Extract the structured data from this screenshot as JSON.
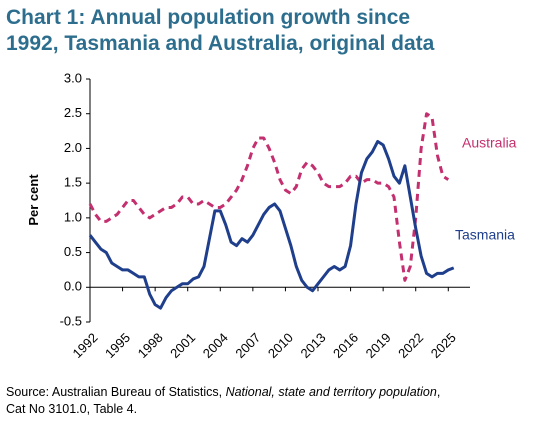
{
  "chart_data": {
    "type": "line",
    "title_lines": [
      "Chart 1: Annual population growth since",
      "1992, Tasmania and Australia, original data"
    ],
    "ylabel": "Per cent",
    "source": {
      "prefix": "Source: Australian Bureau of Statistics, ",
      "italic": "National, state and territory population",
      "suffix": ",",
      "line2": "Cat No 3101.0, Table 4."
    },
    "x": [
      1992,
      1992.5,
      1993,
      1993.5,
      1994,
      1994.5,
      1995,
      1995.5,
      1996,
      1996.5,
      1997,
      1997.5,
      1998,
      1998.5,
      1999,
      1999.5,
      2000,
      2000.5,
      2001,
      2001.5,
      2002,
      2002.5,
      2003,
      2003.5,
      2004,
      2004.5,
      2005,
      2005.5,
      2006,
      2006.5,
      2007,
      2007.5,
      2008,
      2008.5,
      2009,
      2009.5,
      2010,
      2010.5,
      2011,
      2011.5,
      2012,
      2012.5,
      2013,
      2013.5,
      2014,
      2014.5,
      2015,
      2015.5,
      2016,
      2016.5,
      2017,
      2017.5,
      2018,
      2018.5,
      2019,
      2019.5,
      2020,
      2020.5,
      2021,
      2021.5,
      2022,
      2022.5,
      2023,
      2023.5,
      2024,
      2024.5,
      2025,
      2025.5
    ],
    "series": [
      {
        "name": "Australia",
        "color": "#c4306f",
        "dashed": true,
        "values": [
          1.2,
          1.05,
          0.95,
          0.95,
          1.0,
          1.05,
          1.15,
          1.25,
          1.25,
          1.15,
          1.05,
          1.0,
          1.05,
          1.1,
          1.15,
          1.15,
          1.2,
          1.3,
          1.3,
          1.2,
          1.2,
          1.25,
          1.2,
          1.15,
          1.15,
          1.2,
          1.3,
          1.4,
          1.55,
          1.75,
          2.0,
          2.15,
          2.15,
          2.0,
          1.8,
          1.55,
          1.4,
          1.35,
          1.45,
          1.7,
          1.8,
          1.75,
          1.65,
          1.5,
          1.45,
          1.45,
          1.45,
          1.5,
          1.6,
          1.6,
          1.5,
          1.55,
          1.55,
          1.5,
          1.5,
          1.45,
          1.3,
          0.65,
          0.1,
          0.3,
          1.0,
          2.0,
          2.5,
          2.45,
          1.9,
          1.6,
          1.55,
          null
        ]
      },
      {
        "name": "Tasmania",
        "color": "#1f3f8c",
        "dashed": false,
        "values": [
          0.75,
          0.65,
          0.55,
          0.5,
          0.35,
          0.3,
          0.25,
          0.25,
          0.2,
          0.15,
          0.15,
          -0.1,
          -0.25,
          -0.3,
          -0.15,
          -0.05,
          0.0,
          0.05,
          0.05,
          0.12,
          0.15,
          0.3,
          0.7,
          1.1,
          1.1,
          0.9,
          0.65,
          0.6,
          0.7,
          0.65,
          0.75,
          0.9,
          1.05,
          1.15,
          1.2,
          1.1,
          0.85,
          0.6,
          0.3,
          0.1,
          0.0,
          -0.05,
          0.05,
          0.15,
          0.25,
          0.3,
          0.25,
          0.3,
          0.6,
          1.2,
          1.65,
          1.85,
          1.95,
          2.1,
          2.05,
          1.85,
          1.6,
          1.5,
          1.75,
          1.3,
          0.85,
          0.45,
          0.2,
          0.15,
          0.2,
          0.2,
          0.25,
          0.28
        ]
      }
    ],
    "xlim": [
      1992,
      2027
    ],
    "xticks": [
      1992,
      1995,
      1998,
      2001,
      2004,
      2007,
      2010,
      2013,
      2016,
      2019,
      2022,
      2025
    ],
    "ylim": [
      -0.5,
      3.0
    ],
    "yticks": [
      -0.5,
      {
        "value": 0,
        "label": "0.0"
      },
      0.5,
      {
        "value": 1,
        "label": "1.0"
      },
      1.5,
      {
        "value": 2,
        "label": "2.0"
      },
      2.5,
      {
        "value": 3,
        "label": "3.0"
      }
    ],
    "grid": false
  }
}
